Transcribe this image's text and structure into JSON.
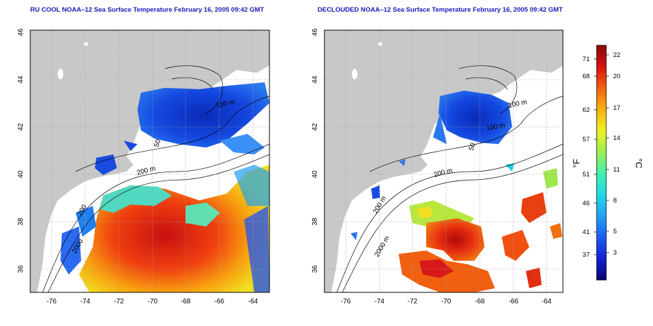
{
  "left_panel": {
    "title": "RU COOL NOAA–12 Sea Surface Temperature February 16, 2005 09:42 GMT",
    "contour_labels": [
      "100 m",
      "50",
      "200 m",
      "200",
      "2000"
    ]
  },
  "right_panel": {
    "title": "DECLOUDED NOAA–12 Sea Surface Temperature February 16, 2005 09:42 GMT",
    "contour_labels": [
      "100 m",
      "100 m",
      "50",
      "200 m",
      "200 m",
      "2000 m"
    ]
  },
  "axes": {
    "lon_ticks": [
      "-76",
      "-74",
      "-72",
      "-70",
      "-68",
      "-66",
      "-64"
    ],
    "lat_ticks": [
      "36",
      "38",
      "40",
      "42",
      "44",
      "46"
    ]
  },
  "colorbar": {
    "fahrenheit_label": "°F",
    "celsius_label": "°C",
    "fahrenheit_ticks": [
      "71",
      "68",
      "62",
      "57",
      "51",
      "46",
      "41",
      "37"
    ],
    "celsius_ticks": [
      "22",
      "20",
      "17",
      "14",
      "11",
      "8",
      "5",
      "3"
    ],
    "colors": [
      "#08086e",
      "#1020d0",
      "#1a5cf5",
      "#1fa0f5",
      "#20d8e8",
      "#40f0b0",
      "#a0f050",
      "#f0f020",
      "#f8b010",
      "#f06010",
      "#d81010",
      "#8a0808"
    ]
  },
  "colors": {
    "land": "#c8c8c8",
    "ocean_no_data": "#ffffff",
    "grid": "#a0a0a0"
  }
}
